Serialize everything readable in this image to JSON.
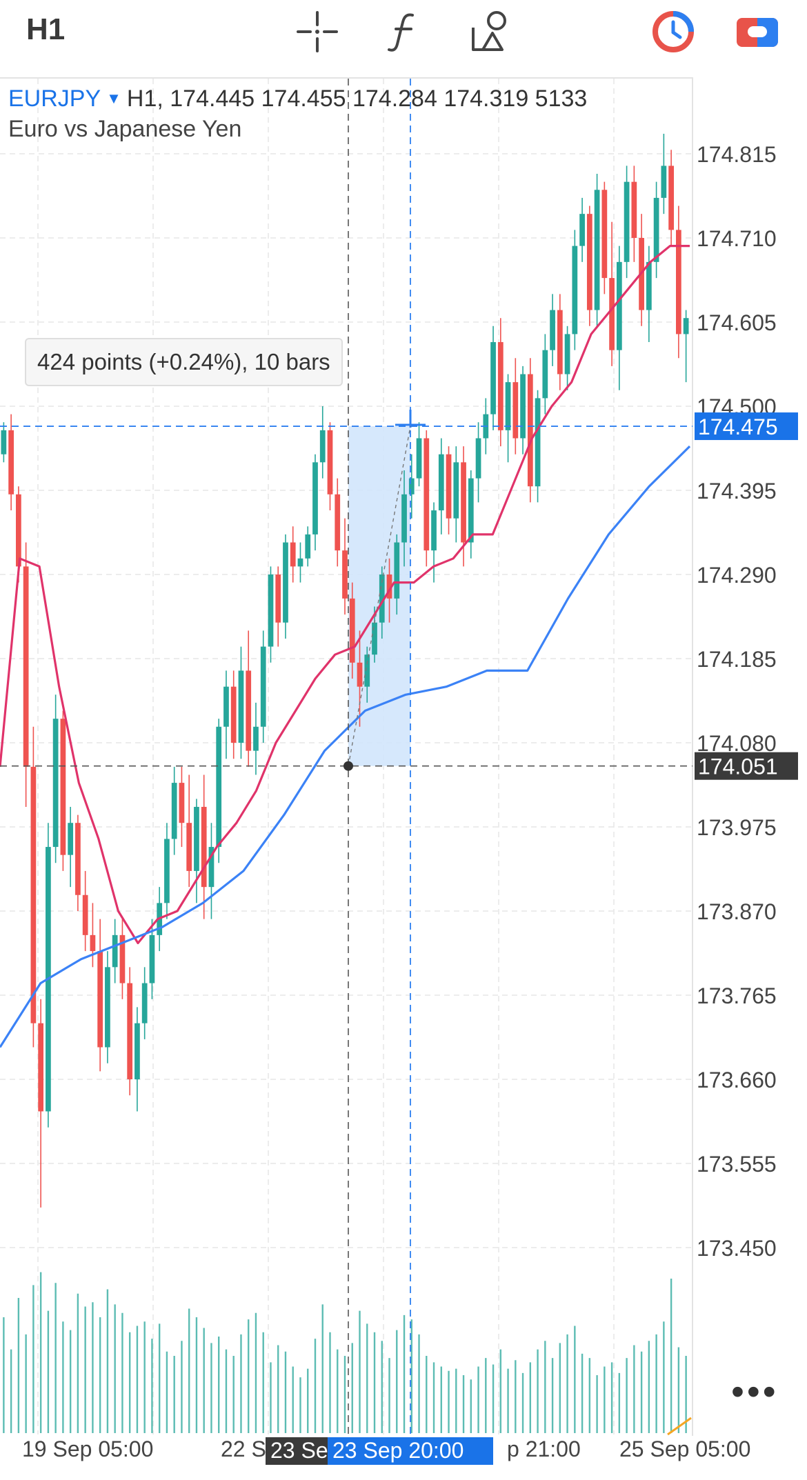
{
  "toolbar": {
    "timeframe": "H1",
    "icons": [
      "crosshair-icon",
      "function-icon",
      "objects-icon",
      "history-clock-icon",
      "toggle-icon"
    ],
    "accent_red": "#e8534a",
    "accent_blue": "#2d7ff0"
  },
  "symbol": {
    "name": "EURJPY",
    "caret": "▼",
    "ohlc": "H1, 174.445 174.455 174.284 174.319 5133",
    "description": "Euro vs Japanese Yen"
  },
  "measure": {
    "tooltip": "424 points (+0.24%), 10 bars"
  },
  "more_label": "•••",
  "chart_data": {
    "type": "candlestick",
    "symbol": "EURJPY",
    "timeframe": "H1",
    "price_ticks": [
      "174.815",
      "174.710",
      "174.605",
      "174.500",
      "174.395",
      "174.290",
      "174.185",
      "174.080",
      "173.975",
      "173.870",
      "173.765",
      "173.660",
      "173.555",
      "173.450"
    ],
    "ylim": [
      173.33,
      174.88
    ],
    "time_labels": [
      "19 Sep 05:00",
      "22 S",
      "p 21:00",
      "25 Sep 05:00"
    ],
    "crosshair": {
      "price_label": "174.475",
      "time_label": "23 Sep 20:00"
    },
    "anchor": {
      "price_label": "174.051",
      "time_label": "23 Se"
    },
    "colors": {
      "up": "#26a69a",
      "down": "#ef5350",
      "ma_fast": "#e0336a",
      "ma_slow": "#3b82f6",
      "volume": "#26a69a",
      "crosshair": "#2d7ff0",
      "range_fill": "#cfe4fb"
    },
    "candles": [
      [
        174.44,
        174.48,
        174.43,
        174.47
      ],
      [
        174.47,
        174.49,
        174.37,
        174.39
      ],
      [
        174.39,
        174.4,
        174.28,
        174.3
      ],
      [
        174.3,
        174.33,
        174.0,
        174.05
      ],
      [
        174.05,
        174.1,
        173.7,
        173.73
      ],
      [
        173.73,
        173.76,
        173.5,
        173.62
      ],
      [
        173.62,
        173.98,
        173.6,
        173.95
      ],
      [
        173.95,
        174.14,
        173.93,
        174.11
      ],
      [
        174.11,
        174.12,
        173.92,
        173.94
      ],
      [
        173.94,
        174.0,
        173.9,
        173.98
      ],
      [
        173.98,
        173.99,
        173.87,
        173.89
      ],
      [
        173.89,
        173.92,
        173.82,
        173.84
      ],
      [
        173.84,
        173.88,
        173.8,
        173.82
      ],
      [
        173.82,
        173.86,
        173.67,
        173.7
      ],
      [
        173.7,
        173.82,
        173.68,
        173.8
      ],
      [
        173.8,
        173.86,
        173.78,
        173.84
      ],
      [
        173.84,
        173.86,
        173.76,
        173.78
      ],
      [
        173.78,
        173.8,
        173.64,
        173.66
      ],
      [
        173.66,
        173.75,
        173.62,
        173.73
      ],
      [
        173.73,
        173.8,
        173.71,
        173.78
      ],
      [
        173.78,
        173.86,
        173.76,
        173.84
      ],
      [
        173.84,
        173.9,
        173.82,
        173.88
      ],
      [
        173.88,
        173.98,
        173.86,
        173.96
      ],
      [
        173.96,
        174.05,
        173.94,
        174.03
      ],
      [
        174.03,
        174.05,
        173.95,
        173.98
      ],
      [
        173.98,
        174.04,
        173.9,
        173.92
      ],
      [
        173.92,
        174.01,
        173.88,
        174.0
      ],
      [
        174.0,
        174.04,
        173.86,
        173.9
      ],
      [
        173.9,
        173.98,
        173.86,
        173.95
      ],
      [
        173.95,
        174.11,
        173.93,
        174.1
      ],
      [
        174.1,
        174.17,
        174.06,
        174.15
      ],
      [
        174.15,
        174.17,
        174.06,
        174.08
      ],
      [
        174.08,
        174.2,
        174.06,
        174.17
      ],
      [
        174.17,
        174.22,
        174.05,
        174.07
      ],
      [
        174.07,
        174.13,
        174.04,
        174.1
      ],
      [
        174.1,
        174.22,
        174.08,
        174.2
      ],
      [
        174.2,
        174.3,
        174.18,
        174.29
      ],
      [
        174.29,
        174.3,
        174.2,
        174.23
      ],
      [
        174.23,
        174.34,
        174.21,
        174.33
      ],
      [
        174.33,
        174.35,
        174.28,
        174.3
      ],
      [
        174.3,
        174.33,
        174.28,
        174.31
      ],
      [
        174.31,
        174.35,
        174.3,
        174.34
      ],
      [
        174.34,
        174.44,
        174.32,
        174.43
      ],
      [
        174.43,
        174.5,
        174.41,
        174.47
      ],
      [
        174.47,
        174.48,
        174.37,
        174.39
      ],
      [
        174.39,
        174.41,
        174.3,
        174.32
      ],
      [
        174.32,
        174.36,
        174.24,
        174.26
      ],
      [
        174.26,
        174.28,
        174.16,
        174.18
      ],
      [
        174.18,
        174.22,
        174.1,
        174.15
      ],
      [
        174.15,
        174.2,
        174.13,
        174.19
      ],
      [
        174.19,
        174.25,
        174.18,
        174.23
      ],
      [
        174.23,
        174.3,
        174.21,
        174.29
      ],
      [
        174.29,
        174.31,
        174.23,
        174.26
      ],
      [
        174.26,
        174.34,
        174.24,
        174.33
      ],
      [
        174.33,
        174.42,
        174.3,
        174.39
      ],
      [
        174.39,
        174.44,
        174.36,
        174.41
      ],
      [
        174.41,
        174.48,
        174.4,
        174.46
      ],
      [
        174.46,
        174.47,
        174.3,
        174.32
      ],
      [
        174.32,
        174.38,
        174.28,
        174.37
      ],
      [
        174.37,
        174.46,
        174.34,
        174.44
      ],
      [
        174.44,
        174.45,
        174.34,
        174.36
      ],
      [
        174.36,
        174.45,
        174.33,
        174.43
      ],
      [
        174.43,
        174.45,
        174.3,
        174.33
      ],
      [
        174.33,
        174.42,
        174.31,
        174.41
      ],
      [
        174.41,
        174.48,
        174.38,
        174.46
      ],
      [
        174.46,
        174.51,
        174.44,
        174.49
      ],
      [
        174.49,
        174.6,
        174.47,
        174.58
      ],
      [
        174.58,
        174.61,
        174.45,
        174.47
      ],
      [
        174.47,
        174.54,
        174.43,
        174.53
      ],
      [
        174.53,
        174.56,
        174.44,
        174.46
      ],
      [
        174.46,
        174.55,
        174.44,
        174.54
      ],
      [
        174.54,
        174.56,
        174.38,
        174.4
      ],
      [
        174.4,
        174.52,
        174.38,
        174.51
      ],
      [
        174.51,
        174.59,
        174.49,
        174.57
      ],
      [
        174.57,
        174.64,
        174.55,
        174.62
      ],
      [
        174.62,
        174.64,
        174.52,
        174.54
      ],
      [
        174.54,
        174.6,
        174.52,
        174.59
      ],
      [
        174.59,
        174.72,
        174.57,
        174.7
      ],
      [
        174.7,
        174.76,
        174.68,
        174.74
      ],
      [
        174.74,
        174.75,
        174.6,
        174.62
      ],
      [
        174.62,
        174.79,
        174.6,
        174.77
      ],
      [
        174.77,
        174.78,
        174.64,
        174.66
      ],
      [
        174.66,
        174.73,
        174.55,
        174.57
      ],
      [
        174.57,
        174.7,
        174.52,
        174.68
      ],
      [
        174.68,
        174.8,
        174.66,
        174.78
      ],
      [
        174.78,
        174.8,
        174.68,
        174.71
      ],
      [
        174.71,
        174.74,
        174.6,
        174.62
      ],
      [
        174.62,
        174.7,
        174.58,
        174.68
      ],
      [
        174.68,
        174.78,
        174.66,
        174.76
      ],
      [
        174.76,
        174.84,
        174.74,
        174.8
      ],
      [
        174.8,
        174.82,
        174.7,
        174.72
      ],
      [
        174.72,
        174.75,
        174.56,
        174.59
      ],
      [
        174.59,
        174.62,
        174.53,
        174.61
      ]
    ],
    "volumes": [
      5400,
      3900,
      6300,
      4600,
      6900,
      7500,
      5700,
      7000,
      5200,
      4800,
      6500,
      5900,
      6100,
      5400,
      6700,
      6000,
      5600,
      4700,
      5000,
      5200,
      4400,
      5100,
      3800,
      3600,
      4300,
      5800,
      5400,
      4900,
      4200,
      4500,
      3900,
      3600,
      4600,
      5300,
      5600,
      4700,
      3300,
      4100,
      3800,
      3100,
      2600,
      3000,
      4400,
      6000,
      4700,
      3900,
      3600,
      4200,
      5700,
      5100,
      4700,
      4300,
      3500,
      4800,
      5500,
      5300,
      4600,
      3600,
      3300,
      3100,
      2900,
      3000,
      2700,
      2500,
      3100,
      3500,
      3200,
      3900,
      3000,
      3400,
      2800,
      3300,
      3900,
      4300,
      3500,
      4200,
      4600,
      5000,
      3700,
      3500,
      2700,
      3100,
      3300,
      2800,
      3500,
      4100,
      3800,
      4300,
      4600,
      5200,
      7200,
      4000,
      3600
    ],
    "ma_fast": [
      174.05,
      174.31,
      174.3,
      174.15,
      174.03,
      173.96,
      173.87,
      173.83,
      173.86,
      173.87,
      173.91,
      173.95,
      173.98,
      174.02,
      174.08,
      174.12,
      174.16,
      174.19,
      174.2,
      174.24,
      174.28,
      174.28,
      174.3,
      174.31,
      174.34,
      174.34,
      174.4,
      174.46,
      174.5,
      174.53,
      174.59,
      174.62,
      174.65,
      174.68,
      174.7,
      174.7
    ],
    "ma_slow": [
      173.7,
      173.78,
      173.81,
      173.83,
      173.85,
      173.88,
      173.92,
      173.99,
      174.07,
      174.12,
      174.14,
      174.15,
      174.17,
      174.17,
      174.26,
      174.34,
      174.4,
      174.45
    ]
  }
}
